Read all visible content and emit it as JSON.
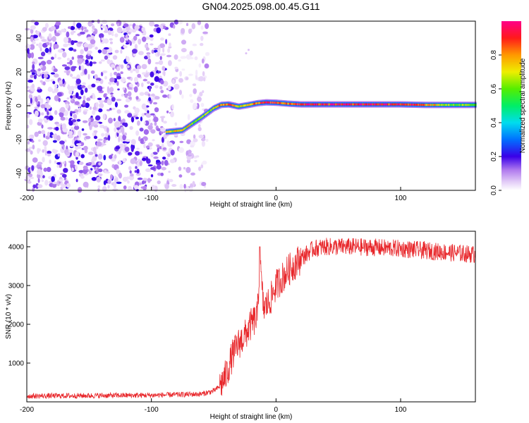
{
  "page": {
    "title": "GN04.2025.098.00.45.G11"
  },
  "chart_data": [
    {
      "type": "heatmap",
      "title": "GN04.2025.098.00.45.G11",
      "xlabel": "Height of straight line (km)",
      "ylabel": "Frequency (Hz)",
      "xlim": [
        -200,
        160
      ],
      "ylim": [
        -50,
        50
      ],
      "x_ticks": [
        -200,
        -100,
        0,
        100
      ],
      "y_ticks": [
        -40,
        -20,
        0,
        20,
        40
      ],
      "grid": false,
      "colorbar": {
        "label": "Normalized spectral amplitude",
        "range": [
          0,
          1
        ],
        "ticks": [
          0.0,
          0.2,
          0.4,
          0.6,
          0.8
        ],
        "colormap": "rainbow-white-to-magenta"
      },
      "noise_region_x": [
        -200,
        -55
      ],
      "signal_track": {
        "x": [
          -88,
          -75,
          -60,
          -50,
          -44,
          -38,
          -30,
          -22,
          -15,
          -8,
          0,
          10,
          20,
          40,
          60,
          100,
          120,
          140,
          160
        ],
        "freq": [
          -15.5,
          -14.5,
          -7,
          -1.5,
          0.5,
          0.8,
          -0.5,
          0.5,
          1.5,
          2,
          1.8,
          1.2,
          0.8,
          0.8,
          0.8,
          0.8,
          0.5,
          0.5,
          0.5
        ],
        "amplitude": [
          0.7,
          0.75,
          0.6,
          0.7,
          0.8,
          0.85,
          0.7,
          0.8,
          0.85,
          0.9,
          0.9,
          0.85,
          0.95,
          0.95,
          0.95,
          0.95,
          0.8,
          0.6,
          0.6
        ]
      }
    },
    {
      "type": "line",
      "xlabel": "Height of straight line (km)",
      "ylabel": "SNR (10 * v/v)",
      "xlim": [
        -200,
        160
      ],
      "ylim": [
        0,
        4400
      ],
      "x_ticks": [
        -200,
        -100,
        0,
        100
      ],
      "y_ticks": [
        1000,
        2000,
        3000,
        4000
      ],
      "grid": false,
      "line_color": "#e8262a",
      "series": [
        {
          "x": [
            -200,
            -150,
            -100,
            -60,
            -50,
            -45,
            -40,
            -35,
            -30,
            -25,
            -20,
            -15,
            -13,
            -10,
            -5,
            0,
            10,
            20,
            30,
            40,
            60,
            80,
            100,
            120,
            140,
            160
          ],
          "values": [
            150,
            160,
            170,
            200,
            280,
            400,
            700,
            1200,
            1500,
            1700,
            2000,
            2200,
            3600,
            2400,
            2600,
            3000,
            3400,
            3700,
            3950,
            4000,
            4000,
            3980,
            3950,
            3900,
            3850,
            3800
          ]
        }
      ]
    }
  ]
}
